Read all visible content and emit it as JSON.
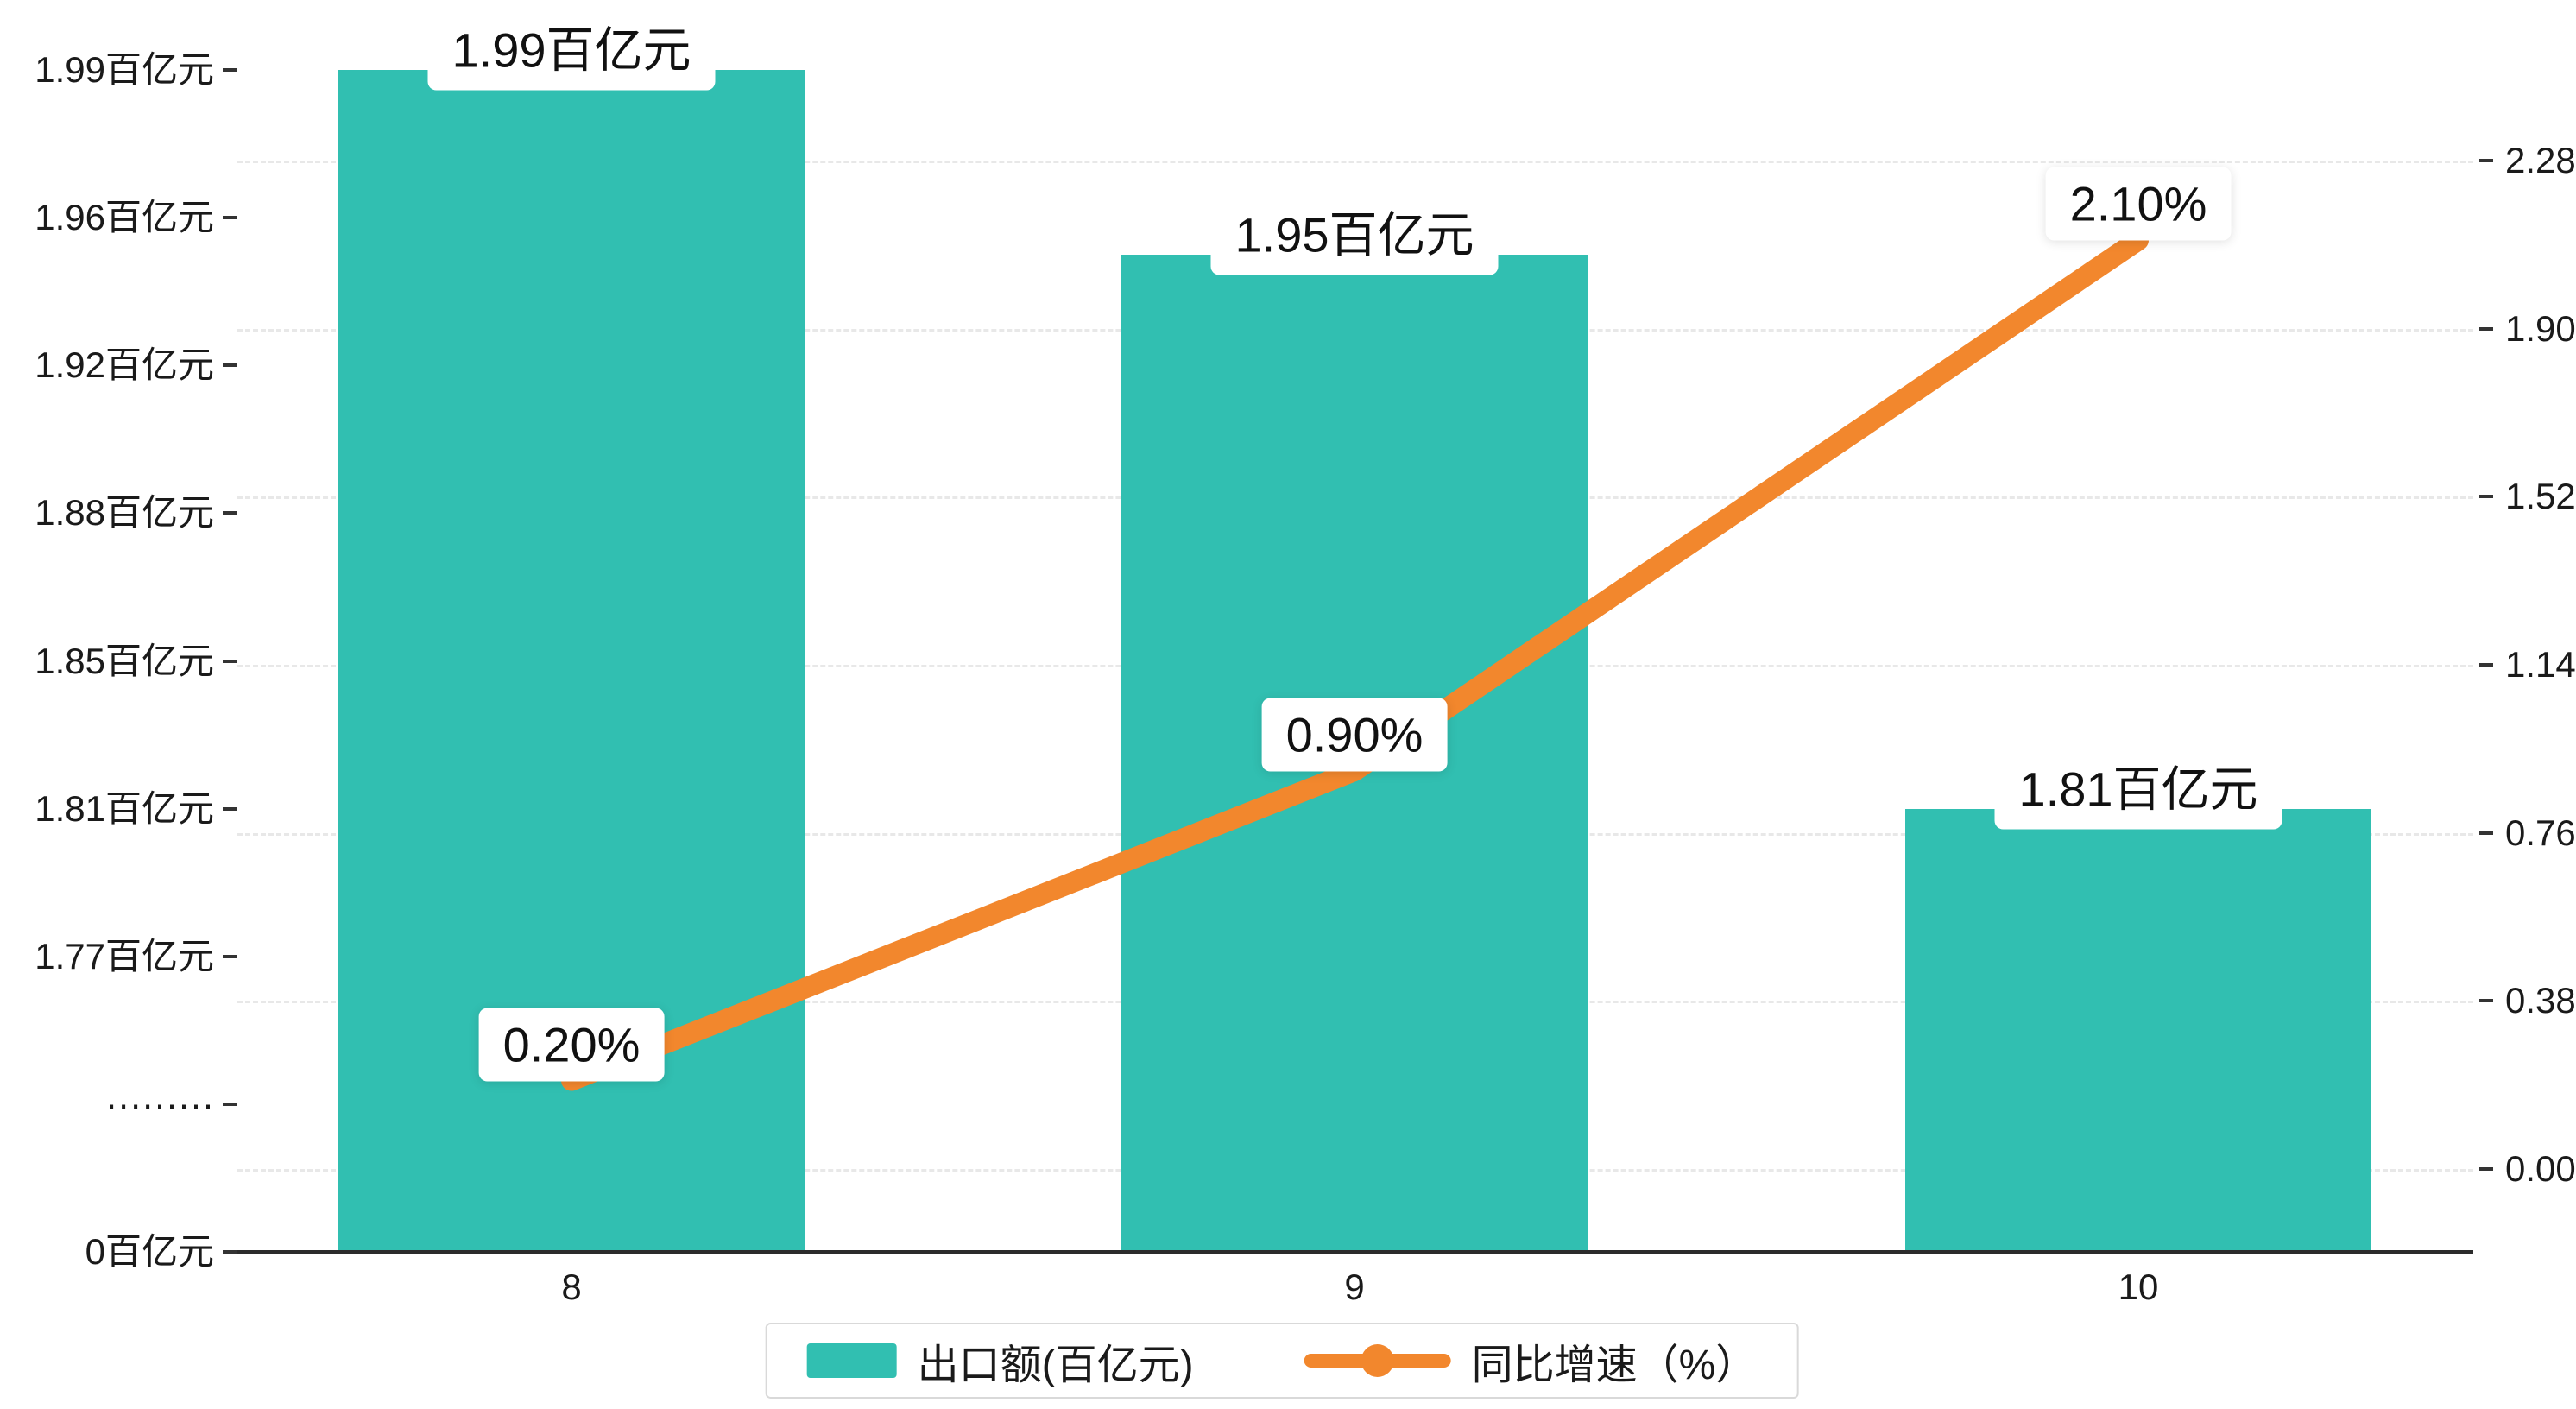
{
  "chart_data": {
    "type": "bar+line combo",
    "categories": [
      "8",
      "9",
      "10"
    ],
    "series": [
      {
        "name": "出口额(百亿元)",
        "type": "bar",
        "axis": "left",
        "values": [
          1.99,
          1.95,
          1.81
        ],
        "data_labels": [
          "1.99百亿元",
          "1.95百亿元",
          "1.81百亿元"
        ],
        "color": "#31bfb1"
      },
      {
        "name": "同比增速（%）",
        "type": "line",
        "axis": "right",
        "values": [
          0.2,
          0.9,
          2.1
        ],
        "data_labels": [
          "0.20%",
          "0.90%",
          "2.10%"
        ],
        "color": "#f2872d"
      }
    ],
    "left_axis": {
      "tick_labels": [
        "1.99百亿元",
        "1.96百亿元",
        "1.92百亿元",
        "1.88百亿元",
        "1.85百亿元",
        "1.81百亿元",
        "1.77百亿元",
        "·········",
        "0百亿元"
      ],
      "tick_values": [
        1.99,
        1.96,
        1.92,
        1.88,
        1.85,
        1.81,
        1.77,
        null,
        0
      ],
      "broken_axis": true
    },
    "right_axis": {
      "tick_labels": [
        "2.28",
        "1.90",
        "1.52",
        "1.14",
        "0.76",
        "0.38",
        "0.00"
      ],
      "range": [
        0,
        2.28
      ]
    },
    "grid": "horizontal dashed",
    "legend_position": "bottom-center"
  },
  "legend": {
    "bar_label": "出口额(百亿元)",
    "line_label": "同比增速（%）"
  },
  "colors": {
    "bar": "#31bfb1",
    "line": "#f2872d",
    "grid": "#e8e8e8",
    "axis": "#2b2b2b",
    "text": "#1a1a1a"
  }
}
